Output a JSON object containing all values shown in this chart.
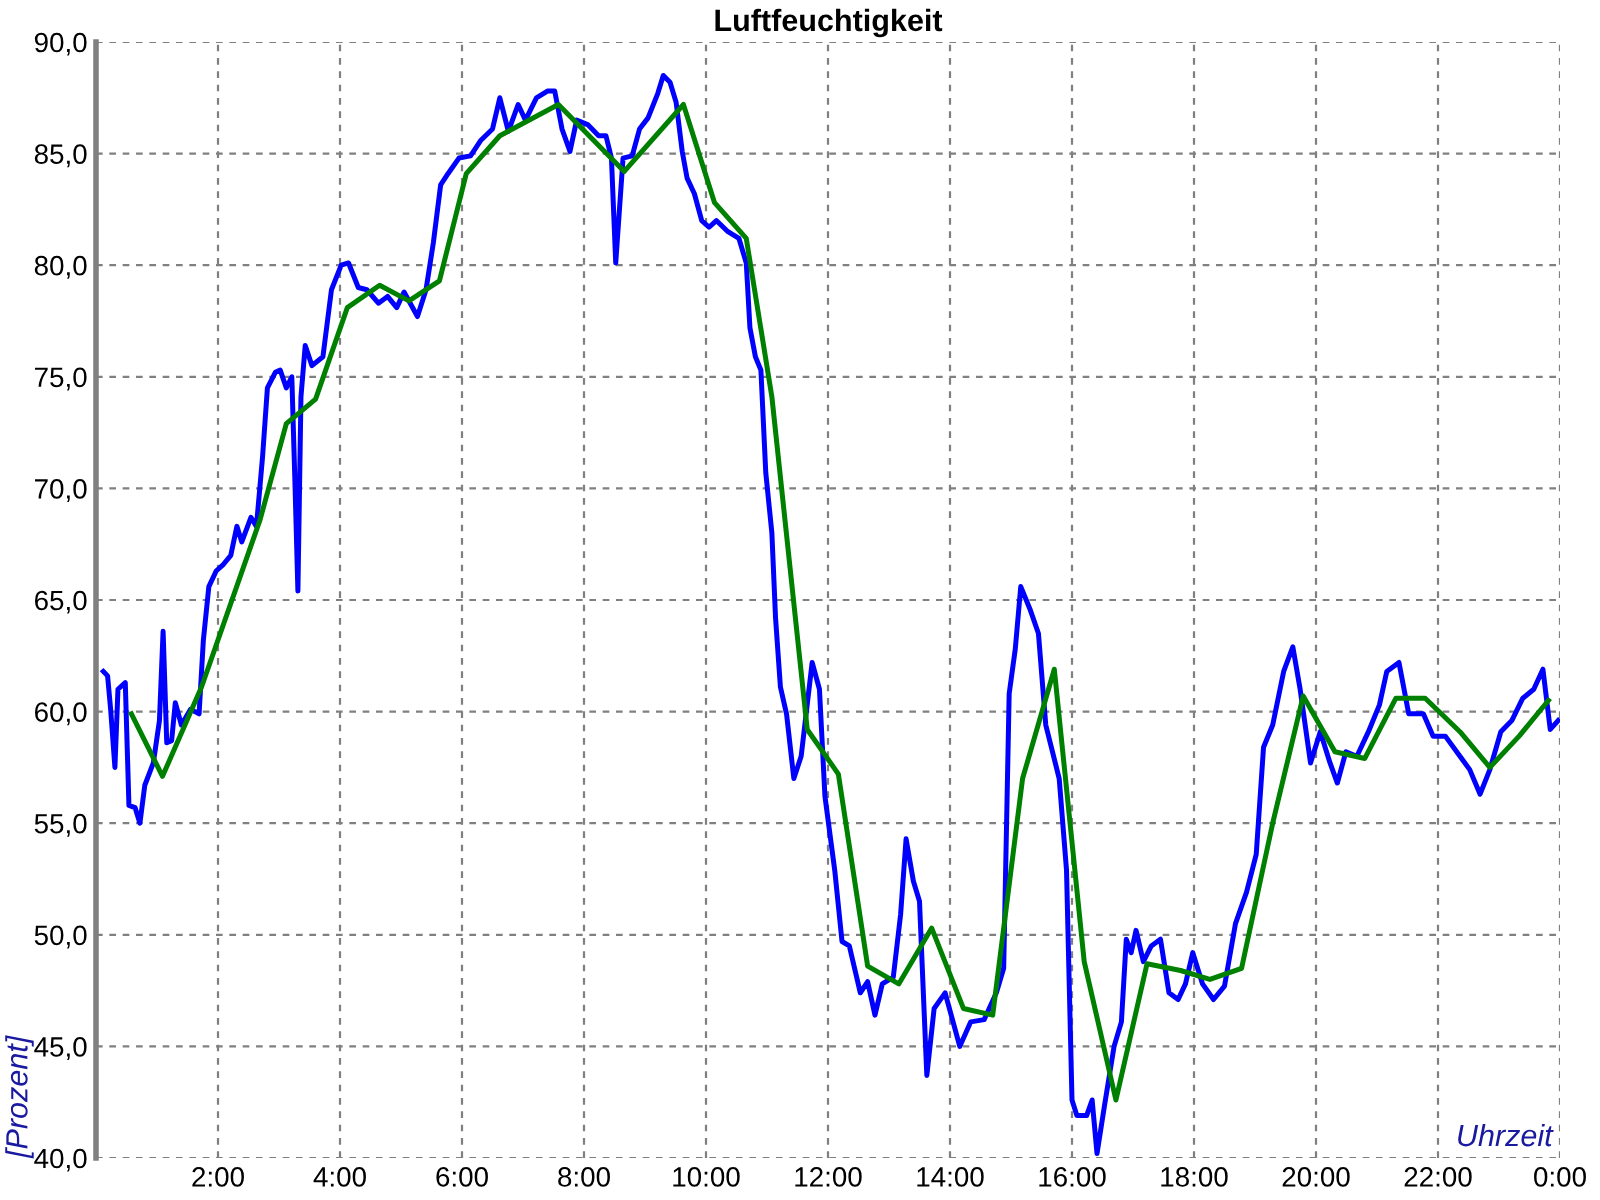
{
  "chart_data": {
    "type": "line",
    "title": "Luftfeuchtigkeit",
    "xlabel": "Uhrzeit",
    "ylabel": "[Prozent]",
    "xlim": [
      0,
      24
    ],
    "ylim": [
      40,
      90
    ],
    "xticks": [
      {
        "value": 0,
        "label": null
      },
      {
        "value": 2,
        "label": "2:00"
      },
      {
        "value": 4,
        "label": "4:00"
      },
      {
        "value": 6,
        "label": "6:00"
      },
      {
        "value": 8,
        "label": "8:00"
      },
      {
        "value": 10,
        "label": "10:00"
      },
      {
        "value": 12,
        "label": "12:00"
      },
      {
        "value": 14,
        "label": "14:00"
      },
      {
        "value": 16,
        "label": "16:00"
      },
      {
        "value": 18,
        "label": "18:00"
      },
      {
        "value": 20,
        "label": "20:00"
      },
      {
        "value": 22,
        "label": "22:00"
      },
      {
        "value": 24,
        "label": "0:00"
      }
    ],
    "yticks": [
      {
        "value": 40,
        "label": "40,0"
      },
      {
        "value": 45,
        "label": "45,0"
      },
      {
        "value": 50,
        "label": "50,0"
      },
      {
        "value": 55,
        "label": "55,0"
      },
      {
        "value": 60,
        "label": "60,0"
      },
      {
        "value": 65,
        "label": "65,0"
      },
      {
        "value": 70,
        "label": "70,0"
      },
      {
        "value": 75,
        "label": "75,0"
      },
      {
        "value": 80,
        "label": "80,0"
      },
      {
        "value": 85,
        "label": "85,0"
      },
      {
        "value": 90,
        "label": "90,0"
      }
    ],
    "grid": true,
    "line_style": "solid",
    "series": [
      {
        "color": "#0000ff",
        "x": [
          0.12,
          0.19,
          0.24,
          0.31,
          0.36,
          0.48,
          0.54,
          0.64,
          0.72,
          0.8,
          0.94,
          1.04,
          1.1,
          1.16,
          1.24,
          1.3,
          1.4,
          1.55,
          1.69,
          1.76,
          1.85,
          1.97,
          2.09,
          2.21,
          2.31,
          2.39,
          2.54,
          2.63,
          2.73,
          2.81,
          2.94,
          3.02,
          3.12,
          3.21,
          3.26,
          3.31,
          3.36,
          3.43,
          3.54,
          3.72,
          3.86,
          4.02,
          4.14,
          4.3,
          4.44,
          4.63,
          4.78,
          4.93,
          5.05,
          5.27,
          5.41,
          5.53,
          5.65,
          5.77,
          5.95,
          6.14,
          6.31,
          6.5,
          6.62,
          6.76,
          6.92,
          7.04,
          7.22,
          7.4,
          7.52,
          7.64,
          7.77,
          7.88,
          8.06,
          8.24,
          8.36,
          8.45,
          8.52,
          8.64,
          8.79,
          8.91,
          9.05,
          9.21,
          9.3,
          9.41,
          9.51,
          9.61,
          9.69,
          9.81,
          9.93,
          10.05,
          10.17,
          10.36,
          10.54,
          10.66,
          10.72,
          10.81,
          10.9,
          10.98,
          11.08,
          11.14,
          11.22,
          11.32,
          11.44,
          11.56,
          11.74,
          11.86,
          11.95,
          12.11,
          12.23,
          12.35,
          12.53,
          12.65,
          12.77,
          12.89,
          13.07,
          13.19,
          13.28,
          13.4,
          13.5,
          13.62,
          13.74,
          13.92,
          14.16,
          14.34,
          14.56,
          14.76,
          14.88,
          14.97,
          15.07,
          15.16,
          15.31,
          15.45,
          15.57,
          15.79,
          15.91,
          16.0,
          16.08,
          16.24,
          16.33,
          16.41,
          16.53,
          16.69,
          16.81,
          16.89,
          16.97,
          17.05,
          17.17,
          17.3,
          17.45,
          17.59,
          17.74,
          17.86,
          17.98,
          18.14,
          18.32,
          18.5,
          18.68,
          18.86,
          19.02,
          19.14,
          19.29,
          19.47,
          19.62,
          19.74,
          19.91,
          20.07,
          20.23,
          20.35,
          20.49,
          20.67,
          20.86,
          21.04,
          21.16,
          21.36,
          21.52,
          21.76,
          21.92,
          22.12,
          22.36,
          22.52,
          22.69,
          22.85,
          23.03,
          23.21,
          23.39,
          23.57,
          23.72,
          23.84,
          23.97
        ],
        "values": [
          61.8,
          61.6,
          60.1,
          57.5,
          61.0,
          61.3,
          55.8,
          55.7,
          55.0,
          56.7,
          57.7,
          59.6,
          63.6,
          58.6,
          58.7,
          60.4,
          59.4,
          60.1,
          59.9,
          63.2,
          65.6,
          66.3,
          66.6,
          67.0,
          68.3,
          67.6,
          68.7,
          68.3,
          71.4,
          74.5,
          75.2,
          75.3,
          74.5,
          75.0,
          70.4,
          65.4,
          74.1,
          76.4,
          75.5,
          75.9,
          78.9,
          80.0,
          80.1,
          79.0,
          78.9,
          78.3,
          78.6,
          78.1,
          78.8,
          77.7,
          78.9,
          81.0,
          83.6,
          84.1,
          84.8,
          84.9,
          85.6,
          86.1,
          87.5,
          86.0,
          87.2,
          86.5,
          87.5,
          87.8,
          87.8,
          86.1,
          85.1,
          86.5,
          86.3,
          85.8,
          85.8,
          84.8,
          80.1,
          84.8,
          84.9,
          86.1,
          86.6,
          87.7,
          88.5,
          88.2,
          87.3,
          85.1,
          83.9,
          83.2,
          82.0,
          81.7,
          82.0,
          81.5,
          81.2,
          80.1,
          77.2,
          75.9,
          75.3,
          70.7,
          68.0,
          64.2,
          61.1,
          59.9,
          57.0,
          58.0,
          62.2,
          61.0,
          56.2,
          52.9,
          49.7,
          49.5,
          47.4,
          47.9,
          46.4,
          47.8,
          48.1,
          50.9,
          54.3,
          52.4,
          51.5,
          43.7,
          46.7,
          47.4,
          45.0,
          46.1,
          46.2,
          47.4,
          48.5,
          60.8,
          62.8,
          65.6,
          64.6,
          63.5,
          59.4,
          57.0,
          52.9,
          42.6,
          41.9,
          41.9,
          42.6,
          40.2,
          42.3,
          45.0,
          46.1,
          49.8,
          49.2,
          50.2,
          48.8,
          49.5,
          49.8,
          47.4,
          47.1,
          47.8,
          49.2,
          47.8,
          47.1,
          47.7,
          50.5,
          51.9,
          53.6,
          58.4,
          59.4,
          61.8,
          62.9,
          61.0,
          57.7,
          59.1,
          57.7,
          56.8,
          58.2,
          58.0,
          59.1,
          60.3,
          61.8,
          62.2,
          59.9,
          59.9,
          58.9,
          58.9,
          58.0,
          57.4,
          56.3,
          57.4,
          59.1,
          59.6,
          60.6,
          61.0,
          61.9,
          59.2,
          59.6
        ]
      },
      {
        "color": "#008000",
        "x": [
          0.58,
          1.09,
          1.73,
          2.69,
          3.12,
          3.6,
          4.12,
          4.65,
          5.13,
          5.63,
          6.07,
          6.62,
          7.58,
          8.66,
          9.63,
          10.14,
          10.66,
          11.08,
          11.66,
          12.17,
          12.65,
          13.16,
          13.7,
          14.22,
          14.7,
          15.19,
          15.71,
          16.2,
          16.72,
          17.23,
          17.78,
          18.26,
          18.78,
          19.29,
          19.79,
          20.31,
          20.8,
          21.31,
          21.79,
          22.36,
          22.85,
          23.33,
          23.81
        ],
        "values": [
          59.9,
          57.1,
          61.1,
          68.6,
          72.9,
          74.0,
          78.1,
          79.1,
          78.4,
          79.3,
          84.1,
          85.8,
          87.2,
          84.2,
          87.2,
          82.8,
          81.2,
          74.1,
          59.2,
          57.2,
          48.6,
          47.8,
          50.3,
          46.7,
          46.4,
          57.0,
          61.9,
          48.8,
          42.6,
          48.7,
          48.4,
          48.0,
          48.5,
          55.0,
          60.7,
          58.2,
          57.9,
          60.6,
          60.6,
          59.1,
          57.5,
          58.9,
          60.5
        ]
      }
    ]
  }
}
